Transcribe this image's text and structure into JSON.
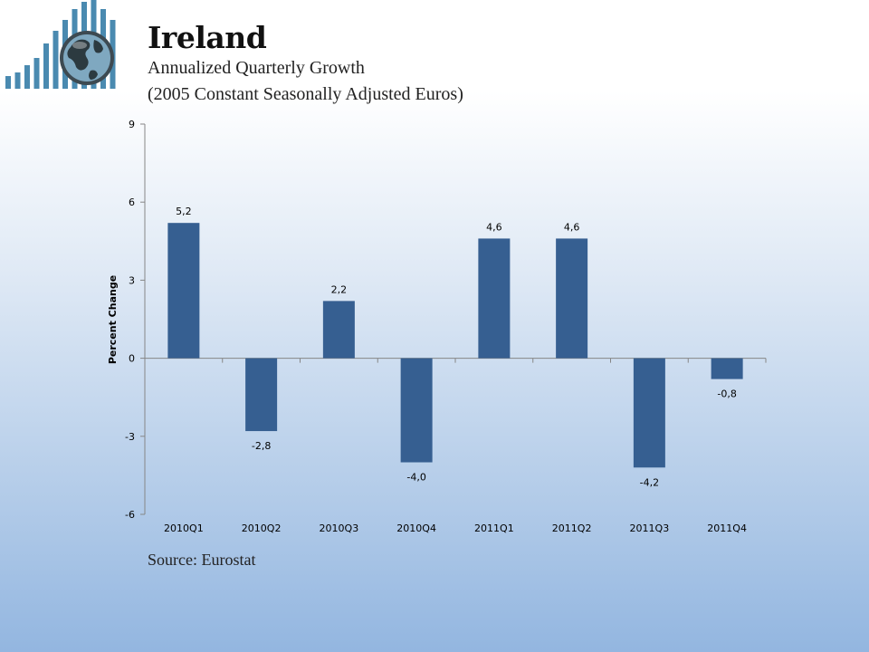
{
  "header": {
    "title": "Ireland",
    "subtitle_line1": "Annualized Quarterly Growth",
    "subtitle_line2": "(2005 Constant Seasonally Adjusted Euros)"
  },
  "logo": {
    "icon": "globe-bar-chart-logo",
    "color": "#4a8ab0"
  },
  "footer": {
    "source": "Source: Eurostat"
  },
  "chart_data": {
    "type": "bar",
    "categories": [
      "2010Q1",
      "2010Q2",
      "2010Q3",
      "2010Q4",
      "2011Q1",
      "2011Q2",
      "2011Q3",
      "2011Q4"
    ],
    "values": [
      5.2,
      -2.8,
      2.2,
      -4.0,
      4.6,
      4.6,
      -4.2,
      -0.8
    ],
    "data_labels": [
      "5,2",
      "-2,8",
      "2,2",
      "-4,0",
      "4,6",
      "4,6",
      "-4,2",
      "-0,8"
    ],
    "ylabel": "Percent Change",
    "ylim": [
      -6,
      9
    ],
    "yticks": [
      9,
      6,
      3,
      0,
      -3,
      -6
    ],
    "bar_color": "#365f91",
    "grid": false,
    "legend": false
  }
}
